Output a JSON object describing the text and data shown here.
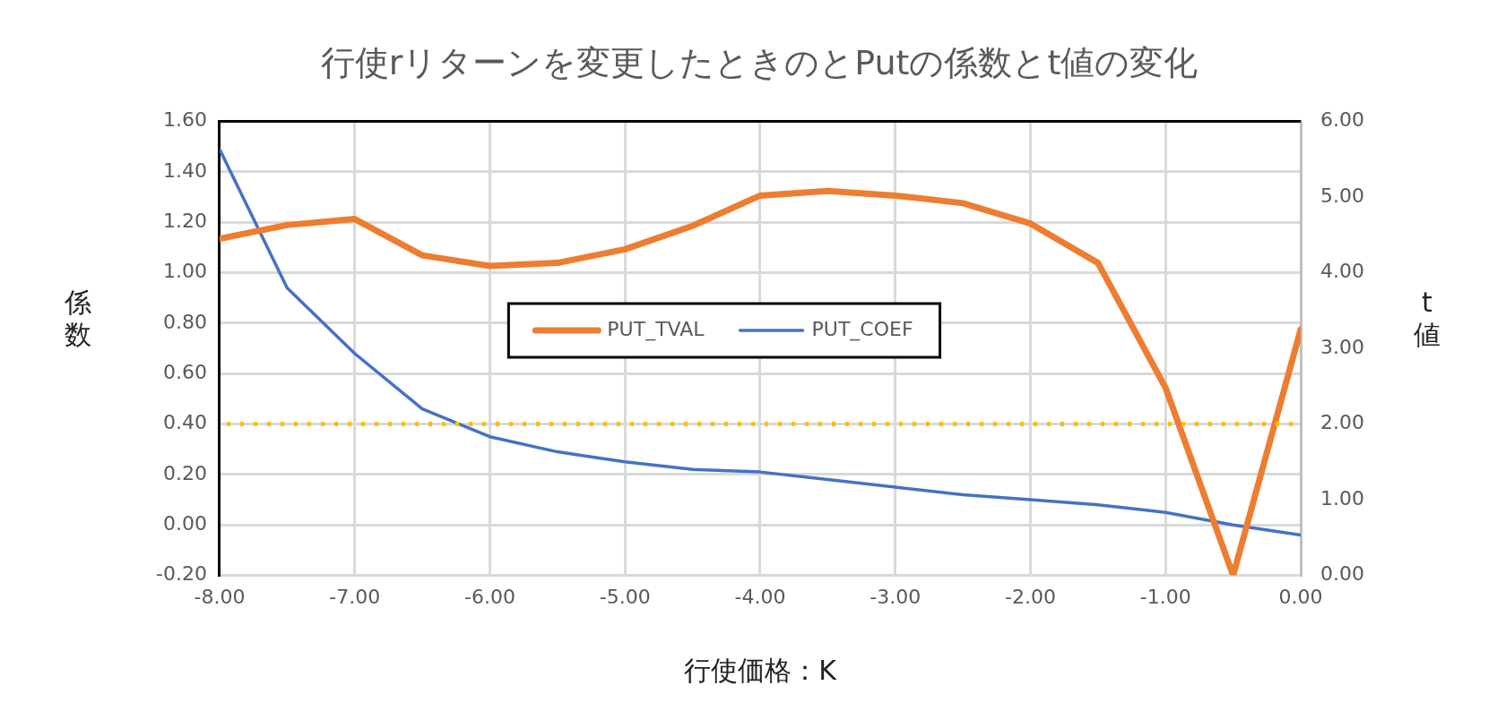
{
  "chart_data": {
    "type": "line",
    "title": "行使rリターンを変更したときのとPutの係数とt値の変化",
    "xlabel": "行使価格：K",
    "ylabel": "係数",
    "y2label": "t 値",
    "x": [
      -8,
      -7.5,
      -7,
      -6.5,
      -6,
      -5.5,
      -5,
      -4.5,
      -4,
      -3.5,
      -3,
      -2.5,
      -2,
      -1.5,
      -1,
      -0.5,
      0
    ],
    "series": [
      {
        "name": "PUT_TVAL",
        "color": "#ed7d31",
        "axis": "y2",
        "values": [
          4.45,
          4.63,
          4.71,
          4.23,
          4.09,
          4.13,
          4.31,
          4.62,
          5.02,
          5.08,
          5.02,
          4.92,
          4.65,
          4.13,
          2.48,
          0,
          3.25
        ]
      },
      {
        "name": "PUT_COEF",
        "color": "#4472c4",
        "values": [
          1.49,
          0.94,
          0.68,
          0.46,
          0.35,
          0.29,
          0.25,
          0.22,
          0.21,
          0.18,
          0.15,
          0.12,
          0.1,
          0.08,
          0.05,
          0,
          -0.04
        ]
      }
    ],
    "xlim": [
      -8,
      0
    ],
    "xticks": [
      {
        "value": -8,
        "label": "-8.00"
      },
      {
        "value": -7,
        "label": "-7.00"
      },
      {
        "value": -6,
        "label": "-6.00"
      },
      {
        "value": -5,
        "label": "-5.00"
      },
      {
        "value": -4,
        "label": "-4.00"
      },
      {
        "value": -3,
        "label": "-3.00"
      },
      {
        "value": -2,
        "label": "-2.00"
      },
      {
        "value": -1,
        "label": "-1.00"
      },
      {
        "value": 0,
        "label": "0.00"
      }
    ],
    "ylim": [
      -0.2,
      1.6
    ],
    "yticks": [
      {
        "value": -0.2,
        "label": "-0.20"
      },
      {
        "value": 0,
        "label": "0.00"
      },
      {
        "value": 0.2,
        "label": "0.20"
      },
      {
        "value": 0.4,
        "label": "0.40"
      },
      {
        "value": 0.6,
        "label": "0.60"
      },
      {
        "value": 0.8,
        "label": "0.80"
      },
      {
        "value": 1,
        "label": "1.00"
      },
      {
        "value": 1.2,
        "label": "1.20"
      },
      {
        "value": 1.4,
        "label": "1.40"
      },
      {
        "value": 1.6,
        "label": "1.60"
      }
    ],
    "y2lim": [
      0,
      6
    ],
    "y2ticks": [
      {
        "value": 0,
        "label": "0.00"
      },
      {
        "value": 1,
        "label": "1.00"
      },
      {
        "value": 2,
        "label": "2.00"
      },
      {
        "value": 3,
        "label": "3.00"
      },
      {
        "value": 4,
        "label": "4.00"
      },
      {
        "value": 5,
        "label": "5.00"
      },
      {
        "value": 6,
        "label": "6.00"
      }
    ],
    "ref_lines": [
      {
        "axis": "y2",
        "value": 2,
        "color": "#ffc000",
        "line_style": "dotted"
      }
    ],
    "grid": true,
    "legend": "center",
    "marker": "none",
    "line_style": "solid"
  }
}
